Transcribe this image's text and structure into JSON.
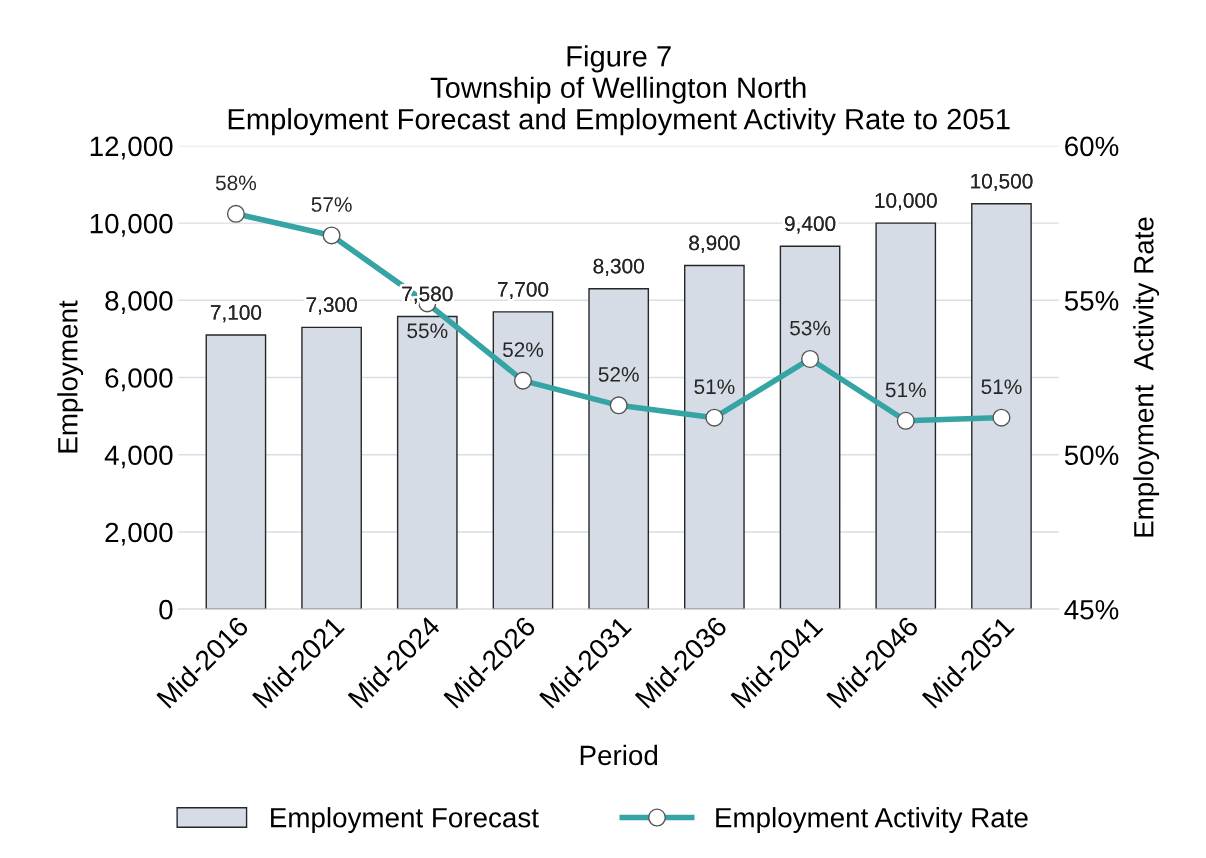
{
  "chart_data": {
    "type": "bar",
    "title": "Figure 7\nTownship of Wellington North\nEmployment Forecast and Employment Activity Rate to 2051",
    "xlabel": "Period",
    "ylabel": "Employment",
    "y2label": "Employment  Activity Rate",
    "categories": [
      "Mid-2016",
      "Mid-2021",
      "Mid-2024",
      "Mid-2026",
      "Mid-2031",
      "Mid-2036",
      "Mid-2041",
      "Mid-2046",
      "Mid-2051"
    ],
    "series": [
      {
        "name": "Employment Forecast",
        "color": "#d6dce5",
        "values": [
          7100,
          7300,
          7580,
          7700,
          8300,
          8900,
          9400,
          10000,
          10500
        ],
        "value_labels": [
          "7,100",
          "7,300",
          "7,580",
          "7,700",
          "8,300",
          "8,900",
          "9,400",
          "10,000",
          "10,500"
        ]
      },
      {
        "name": "Employment Activity Rate",
        "type": "line",
        "axis": "y2",
        "color": "#36a3a5",
        "marker": "circle",
        "values": [
          57.8,
          57.1,
          54.9,
          52.4,
          51.6,
          51.2,
          53.1,
          51.1,
          51.2
        ],
        "value_labels": [
          "58%",
          "57%",
          "55%",
          "52%",
          "52%",
          "51%",
          "53%",
          "51%",
          "51%"
        ]
      }
    ],
    "ylim": [
      0,
      12000
    ],
    "yticks": [
      {
        "value": 0,
        "label": "0"
      },
      {
        "value": 2000,
        "label": "2,000"
      },
      {
        "value": 4000,
        "label": "4,000"
      },
      {
        "value": 6000,
        "label": "6,000"
      },
      {
        "value": 8000,
        "label": "8,000"
      },
      {
        "value": 10000,
        "label": "10,000"
      },
      {
        "value": 12000,
        "label": "12,000"
      }
    ],
    "y2lim": [
      45,
      60
    ],
    "y2ticks": [
      {
        "value": 45,
        "label": "45%"
      },
      {
        "value": 50,
        "label": "50%"
      },
      {
        "value": 55,
        "label": "55%"
      },
      {
        "value": 60,
        "label": "60%"
      }
    ],
    "grid": "y",
    "legend": "bottom"
  }
}
